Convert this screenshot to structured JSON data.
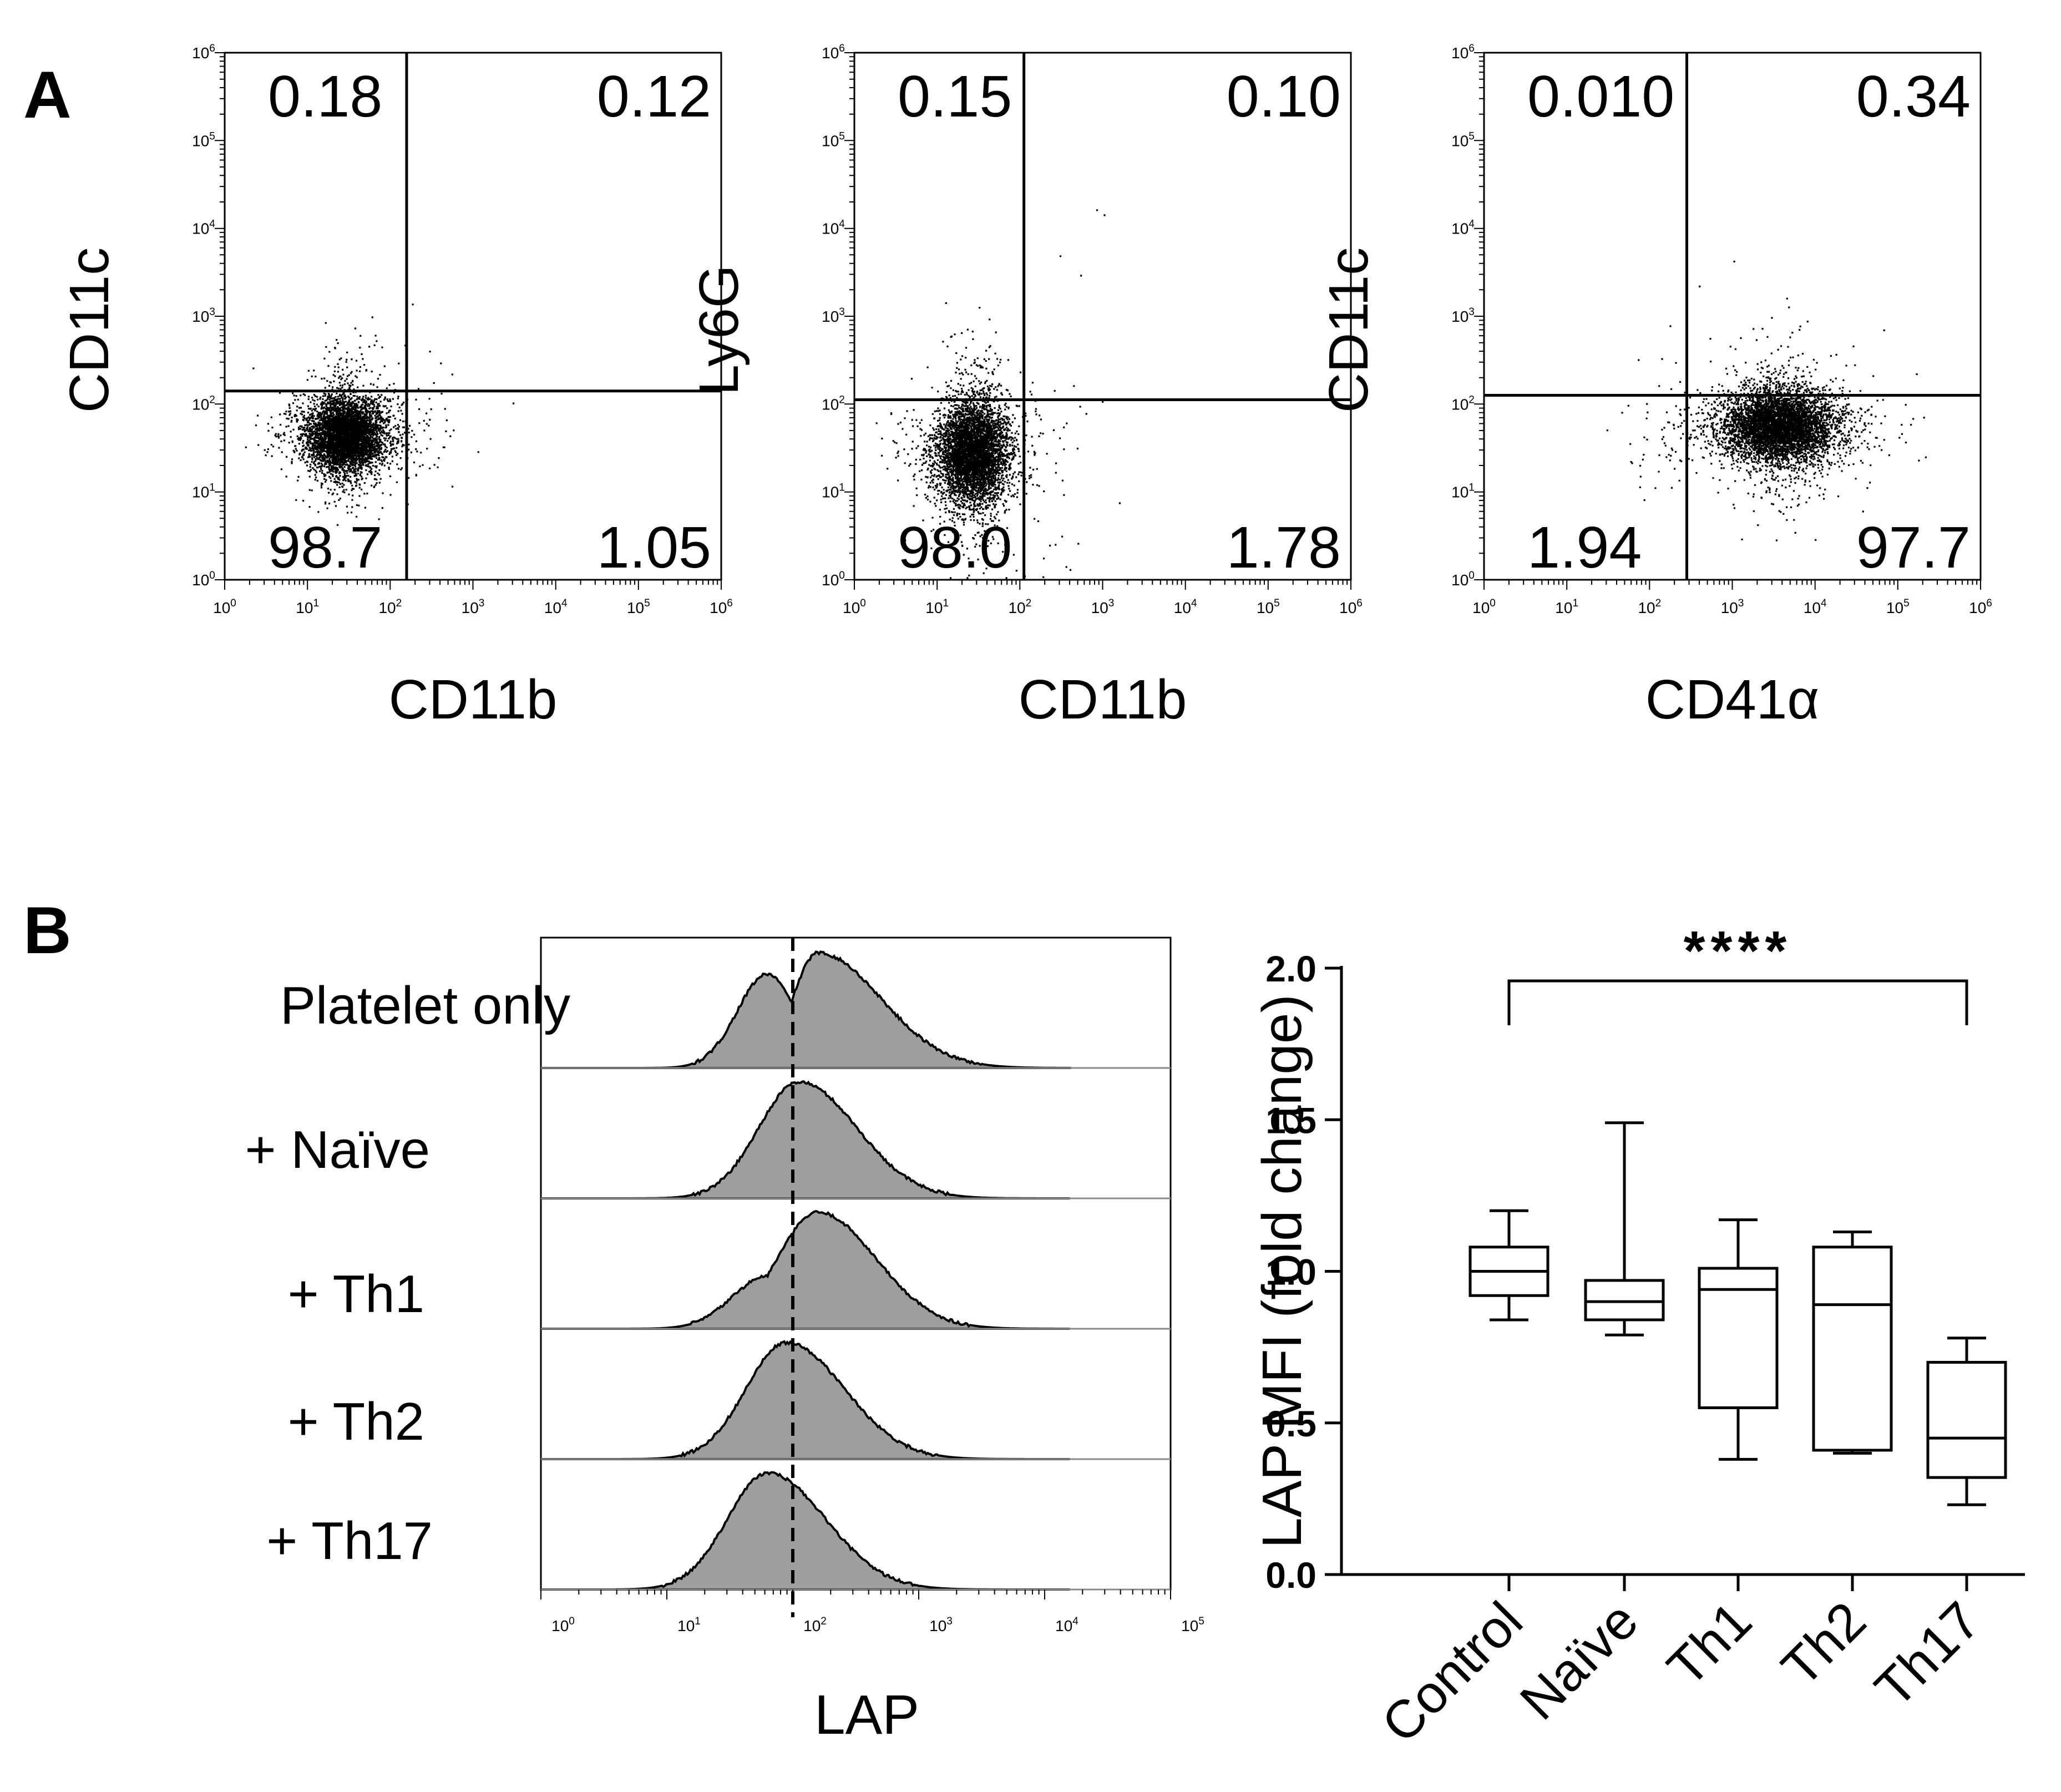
{
  "panel_labels": {
    "a": "A",
    "b": "B"
  },
  "chart_data": [
    {
      "type": "scatter",
      "id": "dot1",
      "xlabel": "CD11b",
      "ylabel": "CD11c",
      "axis_scale": "log10",
      "xlim": [
        1,
        1000000
      ],
      "ylim": [
        1,
        1000000
      ],
      "tick_labels": [
        "10^0",
        "10^1",
        "10^2",
        "10^3",
        "10^4",
        "10^5",
        "10^6"
      ],
      "quadrants": {
        "top_left": "0.18",
        "top_right": "0.12",
        "bottom_left": "98.7",
        "bottom_right": "1.05"
      },
      "gate": {
        "x": 158,
        "y": 141
      }
    },
    {
      "type": "scatter",
      "id": "dot2",
      "xlabel": "CD11b",
      "ylabel": "Ly6G",
      "axis_scale": "log10",
      "xlim": [
        1,
        1000000
      ],
      "ylim": [
        1,
        1000000
      ],
      "tick_labels": [
        "10^0",
        "10^1",
        "10^2",
        "10^3",
        "10^4",
        "10^5",
        "10^6"
      ],
      "quadrants": {
        "top_left": "0.15",
        "top_right": "0.10",
        "bottom_left": "98.0",
        "bottom_right": "1.78"
      },
      "gate": {
        "x": 112,
        "y": 112
      }
    },
    {
      "type": "scatter",
      "id": "dot3",
      "xlabel": "CD41α",
      "ylabel": "CD11c",
      "axis_scale": "log10",
      "xlim": [
        1,
        1000000
      ],
      "ylim": [
        1,
        1000000
      ],
      "tick_labels": [
        "10^0",
        "10^1",
        "10^2",
        "10^3",
        "10^4",
        "10^5",
        "10^6"
      ],
      "quadrants": {
        "top_left": "0.010",
        "top_right": "0.34",
        "bottom_left": "1.94",
        "bottom_right": "97.7"
      },
      "gate": {
        "x": 282,
        "y": 126
      }
    },
    {
      "type": "area",
      "id": "histogram",
      "xlabel": "LAP",
      "axis_scale": "log10",
      "xlim": [
        1,
        100000
      ],
      "tick_labels": [
        "10^0",
        "10^1",
        "10^2",
        "10^3",
        "10^4",
        "10^5"
      ],
      "reference_line_x": 100,
      "series": [
        {
          "name": "Platelet only",
          "peaks": [
            {
              "x": 63,
              "h": 0.75
            },
            {
              "x": 158,
              "h": 0.92
            }
          ],
          "dip_at": 100,
          "dip_h": 0.62
        },
        {
          "name": "+ Naïve",
          "peaks": [
            {
              "x": 112,
              "h": 0.93
            }
          ]
        },
        {
          "name": "+ Th1",
          "peaks": [
            {
              "x": 158,
              "h": 0.93
            }
          ],
          "shoulder_x": 63
        },
        {
          "name": "+ Th2",
          "peaks": [
            {
              "x": 89,
              "h": 0.93
            }
          ],
          "shoulder_x": 158
        },
        {
          "name": "+ Th17",
          "peaks": [
            {
              "x": 63,
              "h": 0.93
            }
          ],
          "shoulder_x": 158
        }
      ]
    },
    {
      "type": "box",
      "id": "boxplot",
      "ylabel": "LAP MFI (fold change)",
      "ylim": [
        0,
        2.0
      ],
      "yticks": [
        "0.0",
        "0.5",
        "1.0",
        "1.5",
        "2.0"
      ],
      "categories": [
        "Control",
        "Naïve",
        "Th1",
        "Th2",
        "Th17"
      ],
      "series": [
        {
          "name": "Control",
          "min": 0.84,
          "q1": 0.92,
          "median": 1.0,
          "q3": 1.08,
          "max": 1.2
        },
        {
          "name": "Naïve",
          "min": 0.79,
          "q1": 0.84,
          "median": 0.9,
          "q3": 0.97,
          "max": 1.49
        },
        {
          "name": "Th1",
          "min": 0.38,
          "q1": 0.55,
          "median": 0.94,
          "q3": 1.01,
          "max": 1.17
        },
        {
          "name": "Th2",
          "min": 0.4,
          "q1": 0.41,
          "median": 0.89,
          "q3": 1.08,
          "max": 1.13
        },
        {
          "name": "Th17",
          "min": 0.23,
          "q1": 0.32,
          "median": 0.45,
          "q3": 0.7,
          "max": 0.78
        }
      ],
      "significance": {
        "from": "Control",
        "to": "Th17",
        "label": "****"
      }
    }
  ]
}
